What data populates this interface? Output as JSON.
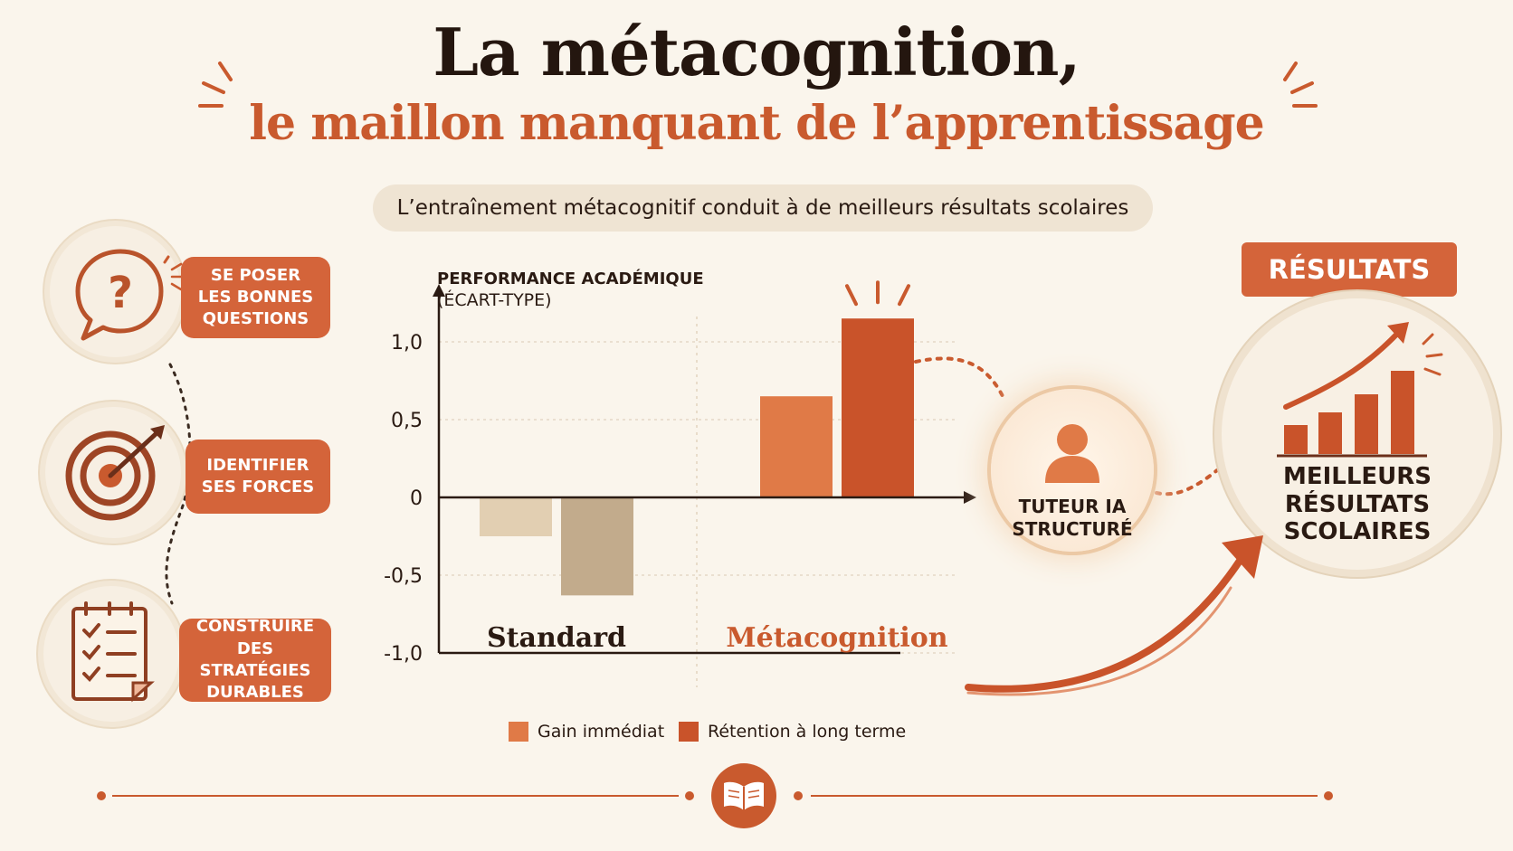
{
  "title": {
    "line1": "La métacognition,",
    "line2": "le maillon manquant de l’apprentissage"
  },
  "subtitle": "L’entraînement métacognitif conduit à de meilleurs résultats scolaires",
  "steps": [
    {
      "label": "SE POSER\nLES BONNES\nQUESTIONS",
      "icon": "question-bubble-icon"
    },
    {
      "label": "IDENTIFIER\nSES FORCES",
      "icon": "target-icon"
    },
    {
      "label": "CONSTRUIRE\nDES STRATÉGIES\nDURABLES",
      "icon": "checklist-icon"
    }
  ],
  "tutor": {
    "label": "TUTEUR IA\nSTRUCTURÉ",
    "icon": "person-icon"
  },
  "results": {
    "badge": "RÉSULTATS",
    "label": "MEILLEURS\nRÉSULTATS\nSCOLAIRES",
    "icon": "rising-bar-chart-icon"
  },
  "colors": {
    "accent": "#d4643a",
    "accent_dark": "#c95a2e",
    "gain_metacog": "#e07a47",
    "retention_metacog": "#c9532a",
    "gain_standard": "#e2cfb2",
    "retention_standard": "#c2ab8c",
    "background": "#faf5ec"
  },
  "chart_data": {
    "type": "bar",
    "ylabel": "PERFORMANCE ACADÉMIQUE\n(ÉCART-TYPE)",
    "categories": [
      "Standard",
      "Métacognition"
    ],
    "series": [
      {
        "name": "Gain immédiat",
        "values": [
          -0.25,
          0.65
        ]
      },
      {
        "name": "Rétention à long terme",
        "values": [
          -0.63,
          1.15
        ]
      }
    ],
    "ylim": [
      -1.0,
      1.0
    ],
    "yticks": [
      1.0,
      0.5,
      0,
      -0.5,
      -1.0
    ],
    "ytick_labels": [
      "1,0",
      "0,5",
      "0",
      "-0,5",
      "-1,0"
    ],
    "grid": true,
    "legend": "bottom"
  }
}
